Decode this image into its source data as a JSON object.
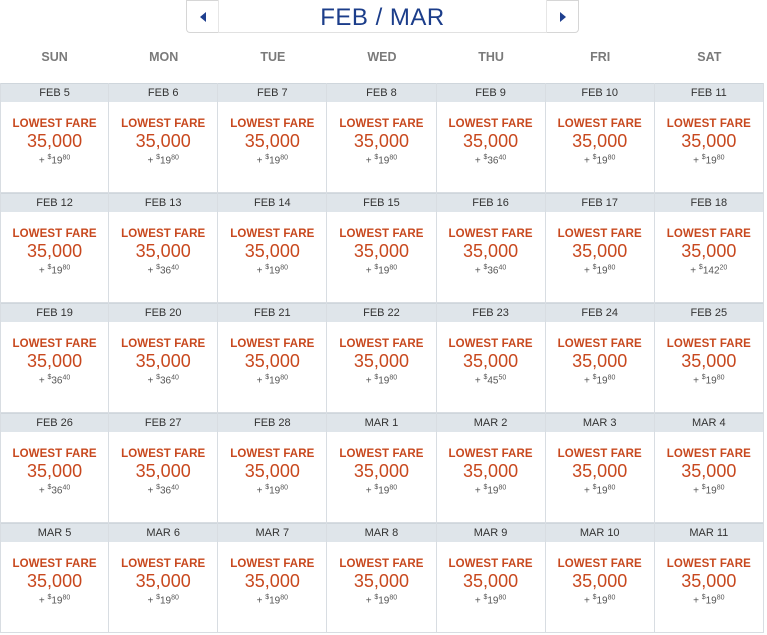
{
  "header": {
    "title": "FEB / MAR",
    "prev_icon": "triangle-left-icon",
    "next_icon": "triangle-right-icon"
  },
  "weekdays": [
    "SUN",
    "MON",
    "TUE",
    "WED",
    "THU",
    "FRI",
    "SAT"
  ],
  "colors": {
    "accent": "#c8481e",
    "title": "#1b3d8a",
    "date_bar": "#dfe5ea"
  },
  "weeks": [
    [
      {
        "date": "FEB 5",
        "label": "LOWEST FARE",
        "miles": "35,000",
        "tax": "19",
        "cents": "80"
      },
      {
        "date": "FEB 6",
        "label": "LOWEST FARE",
        "miles": "35,000",
        "tax": "19",
        "cents": "80"
      },
      {
        "date": "FEB 7",
        "label": "LOWEST FARE",
        "miles": "35,000",
        "tax": "19",
        "cents": "80"
      },
      {
        "date": "FEB 8",
        "label": "LOWEST FARE",
        "miles": "35,000",
        "tax": "19",
        "cents": "80"
      },
      {
        "date": "FEB 9",
        "label": "LOWEST FARE",
        "miles": "35,000",
        "tax": "36",
        "cents": "40"
      },
      {
        "date": "FEB 10",
        "label": "LOWEST FARE",
        "miles": "35,000",
        "tax": "19",
        "cents": "80"
      },
      {
        "date": "FEB 11",
        "label": "LOWEST FARE",
        "miles": "35,000",
        "tax": "19",
        "cents": "80"
      }
    ],
    [
      {
        "date": "FEB 12",
        "label": "LOWEST FARE",
        "miles": "35,000",
        "tax": "19",
        "cents": "80"
      },
      {
        "date": "FEB 13",
        "label": "LOWEST FARE",
        "miles": "35,000",
        "tax": "36",
        "cents": "40"
      },
      {
        "date": "FEB 14",
        "label": "LOWEST FARE",
        "miles": "35,000",
        "tax": "19",
        "cents": "80"
      },
      {
        "date": "FEB 15",
        "label": "LOWEST FARE",
        "miles": "35,000",
        "tax": "19",
        "cents": "80"
      },
      {
        "date": "FEB 16",
        "label": "LOWEST FARE",
        "miles": "35,000",
        "tax": "36",
        "cents": "40"
      },
      {
        "date": "FEB 17",
        "label": "LOWEST FARE",
        "miles": "35,000",
        "tax": "19",
        "cents": "80"
      },
      {
        "date": "FEB 18",
        "label": "LOWEST FARE",
        "miles": "35,000",
        "tax": "142",
        "cents": "20"
      }
    ],
    [
      {
        "date": "FEB 19",
        "label": "LOWEST FARE",
        "miles": "35,000",
        "tax": "36",
        "cents": "40"
      },
      {
        "date": "FEB 20",
        "label": "LOWEST FARE",
        "miles": "35,000",
        "tax": "36",
        "cents": "40"
      },
      {
        "date": "FEB 21",
        "label": "LOWEST FARE",
        "miles": "35,000",
        "tax": "19",
        "cents": "80"
      },
      {
        "date": "FEB 22",
        "label": "LOWEST FARE",
        "miles": "35,000",
        "tax": "19",
        "cents": "80"
      },
      {
        "date": "FEB 23",
        "label": "LOWEST FARE",
        "miles": "35,000",
        "tax": "45",
        "cents": "50"
      },
      {
        "date": "FEB 24",
        "label": "LOWEST FARE",
        "miles": "35,000",
        "tax": "19",
        "cents": "80"
      },
      {
        "date": "FEB 25",
        "label": "LOWEST FARE",
        "miles": "35,000",
        "tax": "19",
        "cents": "80"
      }
    ],
    [
      {
        "date": "FEB 26",
        "label": "LOWEST FARE",
        "miles": "35,000",
        "tax": "36",
        "cents": "40"
      },
      {
        "date": "FEB 27",
        "label": "LOWEST FARE",
        "miles": "35,000",
        "tax": "36",
        "cents": "40"
      },
      {
        "date": "FEB 28",
        "label": "LOWEST FARE",
        "miles": "35,000",
        "tax": "19",
        "cents": "80"
      },
      {
        "date": "MAR 1",
        "label": "LOWEST FARE",
        "miles": "35,000",
        "tax": "19",
        "cents": "80"
      },
      {
        "date": "MAR 2",
        "label": "LOWEST FARE",
        "miles": "35,000",
        "tax": "19",
        "cents": "80"
      },
      {
        "date": "MAR 3",
        "label": "LOWEST FARE",
        "miles": "35,000",
        "tax": "19",
        "cents": "80"
      },
      {
        "date": "MAR 4",
        "label": "LOWEST FARE",
        "miles": "35,000",
        "tax": "19",
        "cents": "80"
      }
    ],
    [
      {
        "date": "MAR 5",
        "label": "LOWEST FARE",
        "miles": "35,000",
        "tax": "19",
        "cents": "80"
      },
      {
        "date": "MAR 6",
        "label": "LOWEST FARE",
        "miles": "35,000",
        "tax": "19",
        "cents": "80"
      },
      {
        "date": "MAR 7",
        "label": "LOWEST FARE",
        "miles": "35,000",
        "tax": "19",
        "cents": "80"
      },
      {
        "date": "MAR 8",
        "label": "LOWEST FARE",
        "miles": "35,000",
        "tax": "19",
        "cents": "80"
      },
      {
        "date": "MAR 9",
        "label": "LOWEST FARE",
        "miles": "35,000",
        "tax": "19",
        "cents": "80"
      },
      {
        "date": "MAR 10",
        "label": "LOWEST FARE",
        "miles": "35,000",
        "tax": "19",
        "cents": "80"
      },
      {
        "date": "MAR 11",
        "label": "LOWEST FARE",
        "miles": "35,000",
        "tax": "19",
        "cents": "80"
      }
    ]
  ]
}
